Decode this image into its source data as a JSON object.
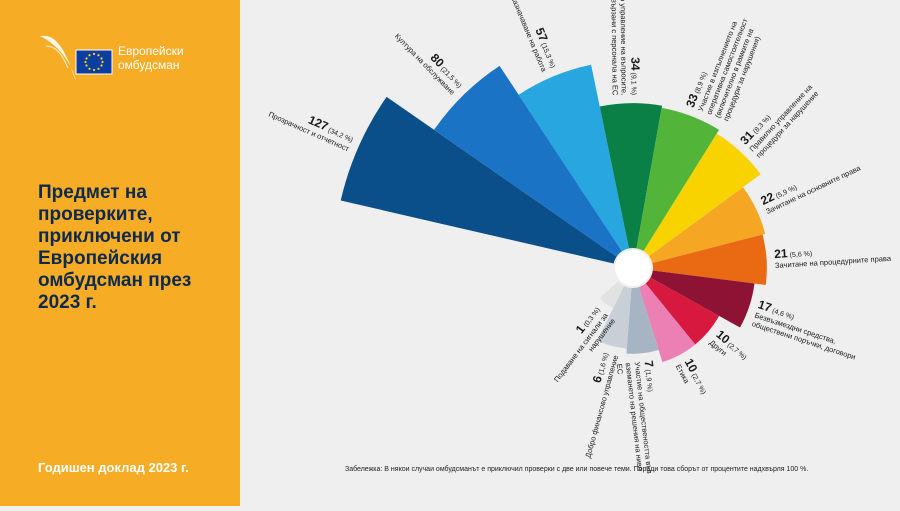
{
  "brand": {
    "line1": "Европейски",
    "line2": "омбудсман"
  },
  "title": "Предмет на проверките, приключени от Европейския омбудсман през 2023 г.",
  "footer": "Годишен доклад 2023 г.",
  "note": "Забележка: В някои случаи омбудсманът е приключил проверки с две или повече теми. Поради това сборът от процентите надхвърля 100 %.",
  "colors": {
    "panel": "#f6ac25",
    "title": "#0d2a4e"
  },
  "chart_data": {
    "type": "polar-bar",
    "title": "Предмет на проверките, приключени от Европейския омбудсман през 2023 г.",
    "categories": [
      {
        "value": 127,
        "pct": "(34,2 %)",
        "label": "Прозрачност и отчетност",
        "color": "#0a4f8a"
      },
      {
        "value": 80,
        "pct": "(21,5 %)",
        "label": "Култура на обслужване",
        "color": "#1a73c4"
      },
      {
        "value": 57,
        "pct": "(15,3 %)",
        "label": "Назначаване на работа",
        "color": "#27a6e0"
      },
      {
        "value": 34,
        "pct": "(9,1 %)",
        "label": "Добро управление на въпросите, свързани с персонала на ЕС",
        "color": "#0a7f46"
      },
      {
        "value": 33,
        "pct": "(8,9 %)",
        "label": "Участие в изпълнението на оперативна самостоятелност (включително в рамките на процедури за нарушения)",
        "color": "#52b53a"
      },
      {
        "value": 31,
        "pct": "(8,3 %)",
        "label": "Правилно управление на процедури за нарушение",
        "color": "#f8d300"
      },
      {
        "value": 22,
        "pct": "(5,9 %)",
        "label": "Зачитане на основните права",
        "color": "#f5a623"
      },
      {
        "value": 21,
        "pct": "(5,6 %)",
        "label": "Зачитане на процедурните права",
        "color": "#ea6a14"
      },
      {
        "value": 17,
        "pct": "(4,6 %)",
        "label": "Безвъзмездни средства, обществени поръчки, договори",
        "color": "#8e1233"
      },
      {
        "value": 10,
        "pct": "(2,7 %)",
        "label": "Други",
        "color": "#d8193f"
      },
      {
        "value": 10,
        "pct": "(2,7 %)",
        "label": "Етика",
        "color": "#ec7fb4"
      },
      {
        "value": 7,
        "pct": "(1,9 %)",
        "label": "Участие на обществеността във вземането на решения на ниво ЕС",
        "color": "#a7b4c3"
      },
      {
        "value": 6,
        "pct": "(1,6 %)",
        "label": "Добро финансово управление",
        "color": "#c9cfd6"
      },
      {
        "value": 1,
        "pct": "(0,3 %)",
        "label": "Подаване на сигнали за нарушение",
        "color": "#e2e2e2"
      }
    ]
  }
}
